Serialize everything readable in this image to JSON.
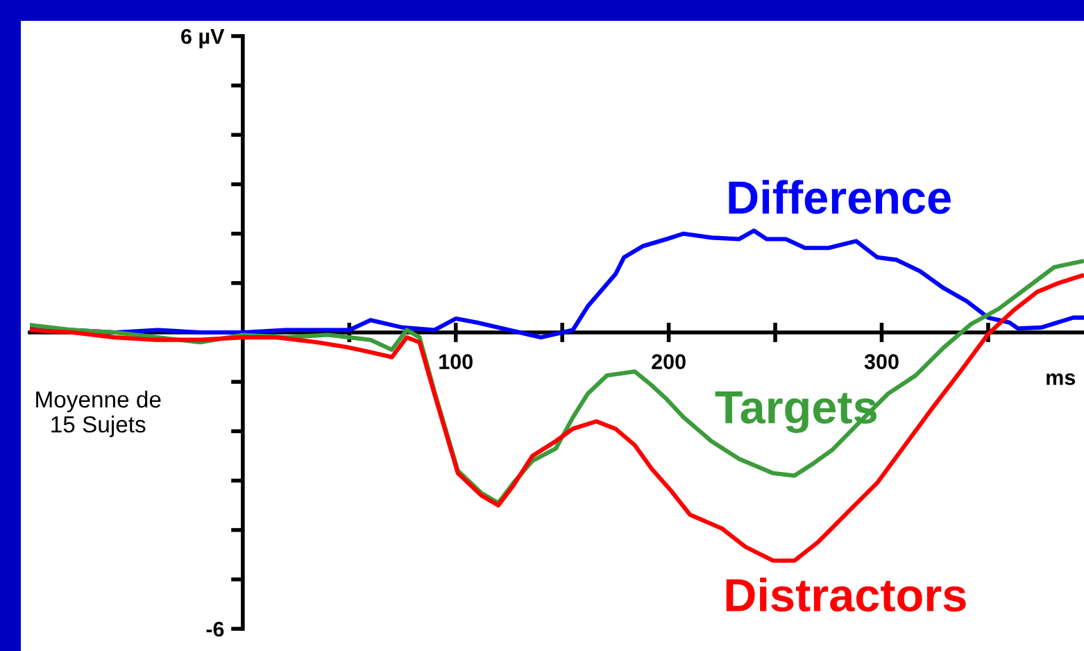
{
  "chart_data": {
    "type": "line",
    "xlabel": "ms",
    "xlim": [
      -100,
      395
    ],
    "ylim": [
      -6,
      6
    ],
    "xticks": [
      {
        "value": 50,
        "label": null
      },
      100,
      {
        "value": 150,
        "label": null
      },
      200,
      {
        "value": 250,
        "label": null
      },
      300,
      {
        "value": 350,
        "label": null
      }
    ],
    "yticks": [
      {
        "value": -6,
        "label": "-6"
      },
      {
        "value": -5,
        "label": null
      },
      {
        "value": -4,
        "label": null
      },
      {
        "value": -3,
        "label": null
      },
      {
        "value": -2,
        "label": null
      },
      {
        "value": -1,
        "label": null
      },
      {
        "value": 1,
        "label": null
      },
      {
        "value": 2,
        "label": null
      },
      {
        "value": 3,
        "label": null
      },
      {
        "value": 4,
        "label": null
      },
      {
        "value": 5,
        "label": null
      },
      {
        "value": 6,
        "label": "6 µV"
      }
    ],
    "grid": false,
    "legend": false,
    "marker": "none",
    "line_style": "solid",
    "annotations": [
      "Moyenne de\n15 Sujets"
    ],
    "series": [
      {
        "name": "Difference",
        "color": "#0000ff",
        "x": [
          -100,
          -80,
          -60,
          -40,
          -20,
          0,
          20,
          50,
          60,
          75,
          90,
          100,
          110,
          130,
          140,
          150,
          155,
          162,
          166,
          175,
          179,
          188,
          199,
          207,
          220,
          233,
          240,
          246,
          255,
          264,
          275,
          288,
          298,
          307,
          318,
          329,
          340,
          350,
          360,
          364,
          375,
          390,
          395
        ],
        "values": [
          0.1,
          0.05,
          0.0,
          0.05,
          0.0,
          0.0,
          0.05,
          0.05,
          0.25,
          0.1,
          0.05,
          0.28,
          0.2,
          0.0,
          -0.1,
          0.0,
          0.05,
          0.53,
          0.73,
          1.18,
          1.52,
          1.75,
          1.89,
          2.0,
          1.92,
          1.89,
          2.06,
          1.89,
          1.89,
          1.71,
          1.71,
          1.85,
          1.52,
          1.47,
          1.24,
          0.9,
          0.63,
          0.3,
          0.2,
          0.08,
          0.1,
          0.3,
          0.3
        ]
      },
      {
        "name": "Targets",
        "color": "#3c9c3c",
        "x": [
          -100,
          -80,
          -60,
          -40,
          -20,
          0,
          20,
          40,
          60,
          70,
          77,
          83,
          90,
          101,
          112,
          120,
          127,
          136,
          147,
          155,
          162,
          171,
          184,
          192,
          199,
          207,
          220,
          233,
          249,
          259,
          268,
          277,
          290,
          303,
          316,
          329,
          342,
          355,
          368,
          381,
          394
        ],
        "values": [
          0.15,
          0.05,
          0.0,
          -0.1,
          -0.2,
          -0.05,
          -0.1,
          -0.05,
          -0.15,
          -0.35,
          0.05,
          -0.1,
          -1.2,
          -2.8,
          -3.25,
          -3.45,
          -3.05,
          -2.6,
          -2.35,
          -1.72,
          -1.24,
          -0.87,
          -0.79,
          -1.07,
          -1.35,
          -1.72,
          -2.2,
          -2.56,
          -2.85,
          -2.9,
          -2.65,
          -2.37,
          -1.8,
          -1.24,
          -0.87,
          -0.31,
          0.17,
          0.48,
          0.9,
          1.32,
          1.44
        ]
      },
      {
        "name": "Distractors",
        "color": "#ff0000",
        "x": [
          -100,
          -80,
          -60,
          -41,
          -20,
          0,
          16,
          35,
          49,
          60,
          70,
          77,
          83,
          90,
          101,
          112,
          120,
          127,
          136,
          147,
          155,
          166,
          175,
          184,
          192,
          201,
          210,
          225,
          236,
          249,
          259,
          270,
          285,
          298,
          311,
          324,
          337,
          350,
          362,
          373,
          383,
          394
        ],
        "values": [
          0.05,
          0.0,
          -0.1,
          -0.15,
          -0.15,
          -0.1,
          -0.1,
          -0.2,
          -0.3,
          -0.4,
          -0.5,
          -0.1,
          -0.2,
          -1.25,
          -2.85,
          -3.3,
          -3.5,
          -3.1,
          -2.5,
          -2.2,
          -1.95,
          -1.8,
          -1.95,
          -2.28,
          -2.76,
          -3.2,
          -3.69,
          -3.97,
          -4.34,
          -4.62,
          -4.62,
          -4.25,
          -3.6,
          -3.04,
          -2.28,
          -1.52,
          -0.79,
          -0.03,
          0.45,
          0.82,
          1.0,
          1.15
        ]
      }
    ]
  }
}
